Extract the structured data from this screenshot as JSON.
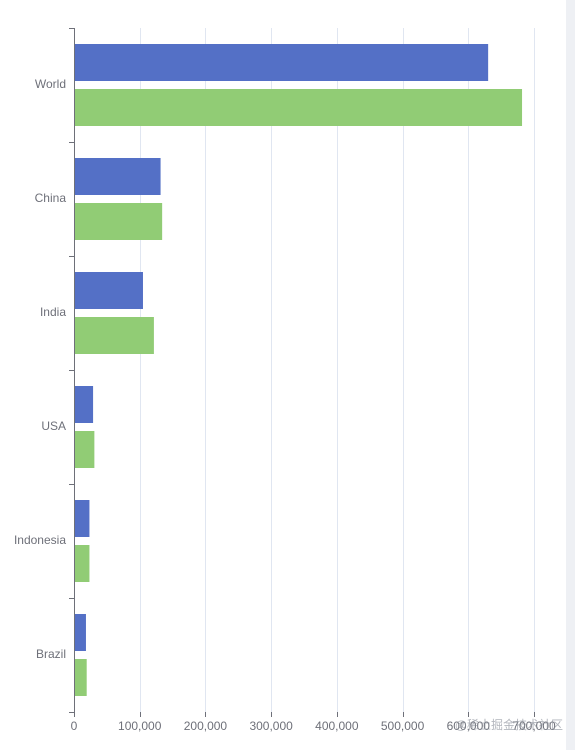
{
  "chart_data": {
    "type": "bar",
    "orientation": "horizontal",
    "categories": [
      "World",
      "China",
      "India",
      "USA",
      "Indonesia",
      "Brazil"
    ],
    "series": [
      {
        "values": [
          630230,
          131744,
          104970,
          29034,
          23489,
          18203
        ]
      },
      {
        "values": [
          681807,
          134141,
          121594,
          31000,
          23489,
          19325
        ]
      }
    ],
    "xlim": [
      0,
      700000
    ],
    "xticks": [
      0,
      100000,
      200000,
      300000,
      400000,
      500000,
      600000,
      700000
    ],
    "xtick_labels": [
      "0",
      "100,000",
      "200,000",
      "300,000",
      "400,000",
      "500,000",
      "600,000",
      "700,000"
    ],
    "grid": true,
    "colors": [
      "#5470c6",
      "#91cc75"
    ]
  },
  "watermark": "@稀土掘金技术社区",
  "colors": {
    "axis": "#6e7079",
    "grid": "#e0e6f1",
    "label": "#6e7079",
    "background": "#ffffff",
    "edge": "#eef0f4"
  }
}
